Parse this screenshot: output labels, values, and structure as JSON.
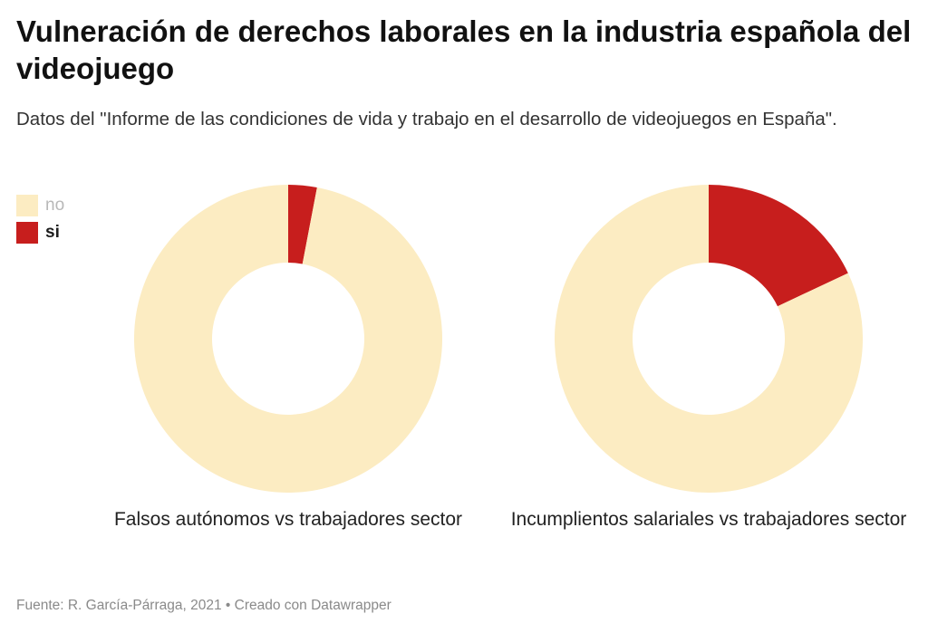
{
  "title": "Vulneración de derechos laborales en la industria española del videojuego",
  "subtitle": "Datos del \"Informe de las condiciones de vida y trabajo en el desarrollo de videojuegos en España\".",
  "legend": [
    {
      "label": "no",
      "color": "#fcecc2"
    },
    {
      "label": "si",
      "color": "#c71e1d"
    }
  ],
  "footer": "Fuente: R. García-Párraga, 2021 • Creado con Datawrapper",
  "chart_data": [
    {
      "type": "pie",
      "donut": true,
      "title": "Falsos autónomos vs trabajadores sector",
      "categories": [
        "si",
        "no"
      ],
      "values": [
        3,
        97
      ],
      "colors": [
        "#c71e1d",
        "#fcecc2"
      ],
      "legend_position": "top-left"
    },
    {
      "type": "pie",
      "donut": true,
      "title": "Incumplientos salariales vs trabajadores sector",
      "categories": [
        "si",
        "no"
      ],
      "values": [
        18,
        82
      ],
      "colors": [
        "#c71e1d",
        "#fcecc2"
      ],
      "legend_position": "top-left"
    }
  ]
}
